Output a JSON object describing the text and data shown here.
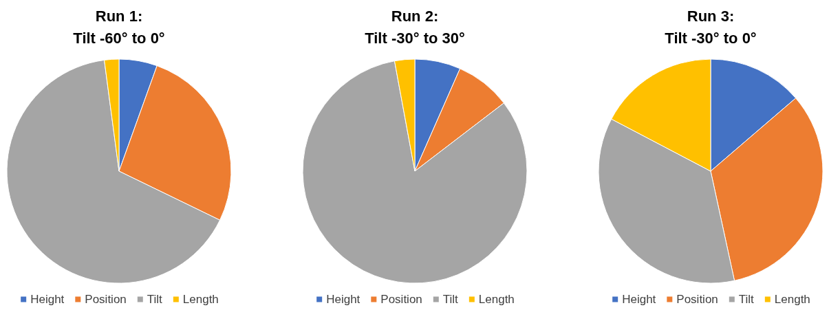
{
  "chart_data": [
    {
      "type": "pie",
      "title": "Run 1:\nTilt -60° to 0°",
      "categories": [
        "Height",
        "Position",
        "Tilt",
        "Length"
      ],
      "values": [
        5.5,
        26.7,
        65.7,
        2.1
      ],
      "colors": [
        "#4472c4",
        "#ed7d31",
        "#a5a5a5",
        "#ffc000"
      ],
      "legend": "bottom"
    },
    {
      "type": "pie",
      "title": "Run 2:\nTilt -30° to 30°",
      "categories": [
        "Height",
        "Position",
        "Tilt",
        "Length"
      ],
      "values": [
        6.6,
        8.0,
        82.5,
        2.9
      ],
      "colors": [
        "#4472c4",
        "#ed7d31",
        "#a5a5a5",
        "#ffc000"
      ],
      "legend": "bottom"
    },
    {
      "type": "pie",
      "title": "Run 3:\nTilt -30° to 0°",
      "categories": [
        "Height",
        "Position",
        "Tilt",
        "Length"
      ],
      "values": [
        13.7,
        32.9,
        36.1,
        17.3
      ],
      "colors": [
        "#4472c4",
        "#ed7d31",
        "#a5a5a5",
        "#ffc000"
      ],
      "legend": "bottom"
    }
  ]
}
